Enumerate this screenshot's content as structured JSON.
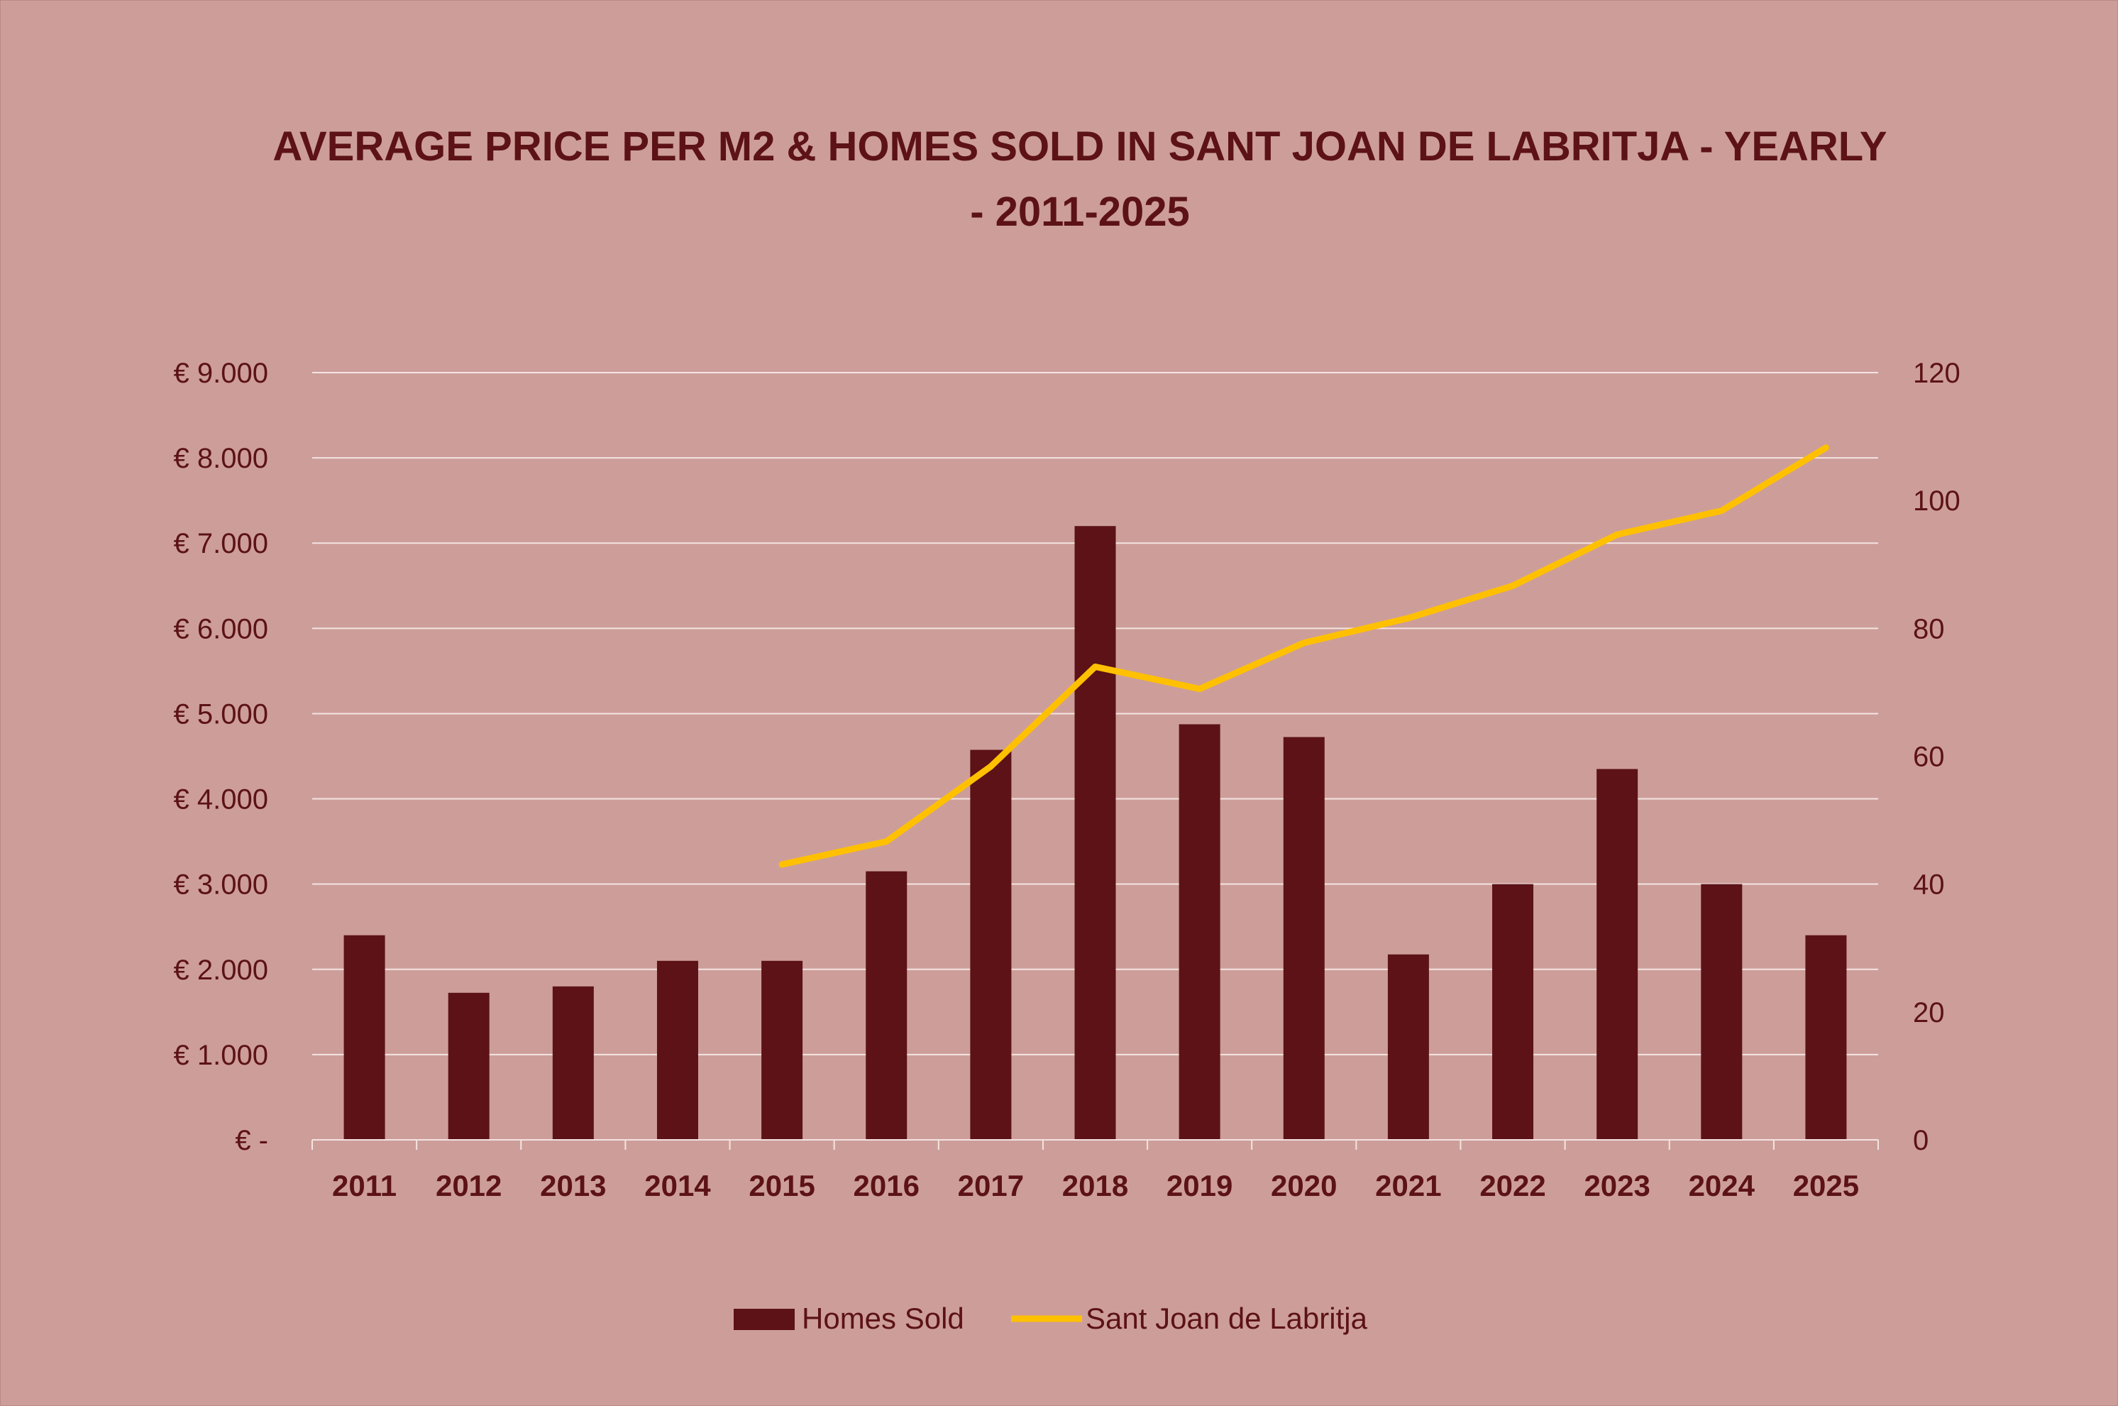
{
  "chart_data": {
    "type": "bar",
    "title_lines": [
      "AVERAGE PRICE PER M2 & HOMES SOLD IN SANT JOAN DE LABRITJA - YEARLY",
      "- 2011-2025"
    ],
    "categories": [
      "2011",
      "2012",
      "2013",
      "2014",
      "2015",
      "2016",
      "2017",
      "2018",
      "2019",
      "2020",
      "2021",
      "2022",
      "2023",
      "2024",
      "2025"
    ],
    "series": [
      {
        "name": "Homes Sold",
        "type": "bar",
        "axis": "right",
        "color": "#5c1216",
        "values": [
          32,
          23,
          24,
          28,
          28,
          42,
          61,
          96,
          65,
          63,
          29,
          40,
          58,
          40,
          32
        ]
      },
      {
        "name": "Sant Joan de Labritja",
        "type": "line",
        "axis": "left",
        "color": "#ffc000",
        "values": [
          null,
          null,
          null,
          null,
          3230,
          3500,
          4380,
          5550,
          5290,
          5830,
          6120,
          6500,
          7100,
          7380,
          8120
        ]
      }
    ],
    "y_left": {
      "range": [
        0,
        9000
      ],
      "ticks": [
        0,
        1000,
        2000,
        3000,
        4000,
        5000,
        6000,
        7000,
        8000,
        9000
      ],
      "tick_labels": [
        "€ -",
        "€ 1.000",
        "€ 2.000",
        "€ 3.000",
        "€ 4.000",
        "€ 5.000",
        "€ 6.000",
        "€ 7.000",
        "€ 8.000",
        "€ 9.000"
      ]
    },
    "y_right": {
      "range": [
        0,
        120
      ],
      "ticks": [
        0,
        20,
        40,
        60,
        80,
        100,
        120
      ],
      "tick_labels": [
        "0",
        "20",
        "40",
        "60",
        "80",
        "100",
        "120"
      ]
    },
    "grid": true,
    "legend": "bottom",
    "colors": {
      "background": "#cd9e99",
      "text": "#5c1216",
      "gridline": "#f3e4e2"
    }
  }
}
